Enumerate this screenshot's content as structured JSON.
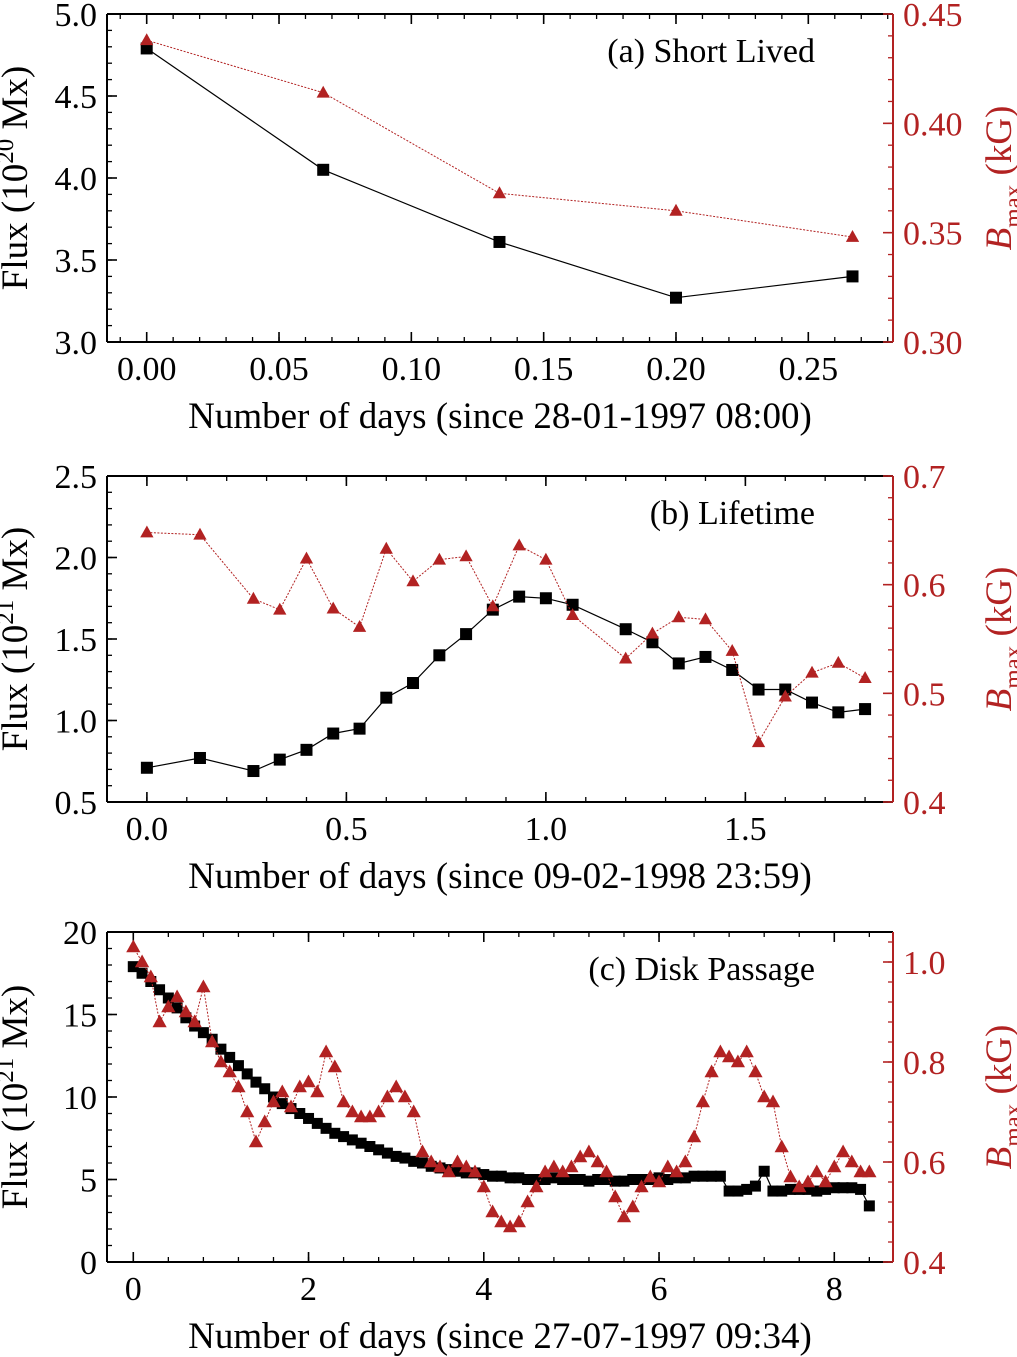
{
  "chart_data": [
    {
      "type": "line",
      "title": "(a) Short Lived",
      "xlabel": "Number of days (since 28-01-1997 08:00)",
      "ylabel": {
        "pre": "Flux (10",
        "sup": "20",
        "post": " Mx)"
      },
      "y2label": {
        "var": "B",
        "sub": "max",
        "post": " (kG)"
      },
      "xlim": [
        -0.015,
        0.282
      ],
      "xticks": [
        0.0,
        0.05,
        0.1,
        0.15,
        0.2,
        0.25
      ],
      "xtick_labels": [
        "0.00",
        "0.05",
        "0.10",
        "0.15",
        "0.20",
        "0.25"
      ],
      "ylim": [
        3.0,
        5.0
      ],
      "yticks": [
        3.0,
        3.5,
        4.0,
        4.5,
        5.0
      ],
      "ytick_labels": [
        "3.0",
        "3.5",
        "4.0",
        "4.5",
        "5.0"
      ],
      "y2lim": [
        0.3,
        0.45
      ],
      "y2ticks": [
        0.3,
        0.35,
        0.4,
        0.45
      ],
      "y2tick_labels": [
        "0.30",
        "0.35",
        "0.40",
        "0.45"
      ],
      "series": [
        {
          "name": "Flux",
          "axis": "left",
          "marker": "square",
          "color": "#000000",
          "x": [
            0.0,
            0.0667,
            0.1333,
            0.2,
            0.2667
          ],
          "y": [
            4.79,
            4.05,
            3.61,
            3.27,
            3.4
          ]
        },
        {
          "name": "Bmax",
          "axis": "right",
          "marker": "triangle",
          "color": "#b22222",
          "x": [
            0.0,
            0.0667,
            0.1333,
            0.2,
            0.2667
          ],
          "y": [
            0.438,
            0.414,
            0.368,
            0.36,
            0.348
          ]
        }
      ]
    },
    {
      "type": "line",
      "title": "(b) Lifetime",
      "xlabel": "Number of days (since 09-02-1998 23:59)",
      "ylabel": {
        "pre": "Flux (10",
        "sup": "21",
        "post": " Mx)"
      },
      "y2label": {
        "var": "B",
        "sub": "max",
        "post": " (kG)"
      },
      "xlim": [
        -0.1,
        1.87
      ],
      "xticks": [
        0.0,
        0.5,
        1.0,
        1.5
      ],
      "xtick_labels": [
        "0.0",
        "0.5",
        "1.0",
        "1.5"
      ],
      "ylim": [
        0.5,
        2.5
      ],
      "yticks": [
        0.5,
        1.0,
        1.5,
        2.0,
        2.5
      ],
      "ytick_labels": [
        "0.5",
        "1.0",
        "1.5",
        "2.0",
        "2.5"
      ],
      "y2lim": [
        0.4,
        0.7
      ],
      "y2ticks": [
        0.4,
        0.5,
        0.6,
        0.7
      ],
      "y2tick_labels": [
        "0.4",
        "0.5",
        "0.6",
        "0.7"
      ],
      "series": [
        {
          "name": "Flux",
          "axis": "left",
          "marker": "square",
          "color": "#000000",
          "x": [
            0.0,
            0.133,
            0.267,
            0.333,
            0.4,
            0.467,
            0.533,
            0.6,
            0.667,
            0.733,
            0.8,
            0.867,
            0.933,
            1.0,
            1.067,
            1.2,
            1.267,
            1.333,
            1.4,
            1.467,
            1.533,
            1.6,
            1.667,
            1.733,
            1.8
          ],
          "y": [
            0.71,
            0.77,
            0.69,
            0.76,
            0.82,
            0.92,
            0.95,
            1.14,
            1.23,
            1.4,
            1.53,
            1.68,
            1.76,
            1.75,
            1.71,
            1.56,
            1.48,
            1.35,
            1.39,
            1.31,
            1.19,
            1.19,
            1.11,
            1.05,
            1.07
          ]
        },
        {
          "name": "Bmax",
          "axis": "right",
          "marker": "triangle",
          "color": "#b22222",
          "x": [
            0.0,
            0.133,
            0.267,
            0.333,
            0.4,
            0.467,
            0.533,
            0.6,
            0.667,
            0.733,
            0.8,
            0.867,
            0.933,
            1.0,
            1.067,
            1.2,
            1.267,
            1.333,
            1.4,
            1.467,
            1.533,
            1.6,
            1.667,
            1.733,
            1.8
          ],
          "y": [
            0.648,
            0.646,
            0.587,
            0.577,
            0.624,
            0.578,
            0.561,
            0.633,
            0.603,
            0.623,
            0.626,
            0.58,
            0.636,
            0.623,
            0.572,
            0.532,
            0.555,
            0.57,
            0.568,
            0.539,
            0.455,
            0.497,
            0.519,
            0.528,
            0.514
          ]
        }
      ]
    },
    {
      "type": "line",
      "title": "(c) Disk Passage",
      "xlabel": "Number of days (since 27-07-1997 09:34)",
      "ylabel": {
        "pre": "Flux (10",
        "sup": "21",
        "post": " Mx)"
      },
      "y2label": {
        "var": "B",
        "sub": "max",
        "post": " (kG)"
      },
      "xlim": [
        -0.3,
        8.67
      ],
      "xticks": [
        0,
        2,
        4,
        6,
        8
      ],
      "xtick_labels": [
        "0",
        "2",
        "4",
        "6",
        "8"
      ],
      "ylim": [
        0,
        20
      ],
      "yticks": [
        0,
        5,
        10,
        15,
        20
      ],
      "ytick_labels": [
        "0",
        "5",
        "10",
        "15",
        "20"
      ],
      "y2lim": [
        0.4,
        1.06
      ],
      "y2ticks": [
        0.4,
        0.6,
        0.8,
        1.0
      ],
      "y2tick_labels": [
        "0.4",
        "0.6",
        "0.8",
        "1.0"
      ],
      "series": [
        {
          "name": "Flux",
          "axis": "left",
          "marker": "square",
          "color": "#000000",
          "x": [
            0.0,
            0.1,
            0.2,
            0.3,
            0.4,
            0.5,
            0.6,
            0.7,
            0.8,
            0.9,
            1.0,
            1.1,
            1.2,
            1.3,
            1.4,
            1.5,
            1.6,
            1.7,
            1.8,
            1.9,
            2.0,
            2.1,
            2.2,
            2.3,
            2.4,
            2.5,
            2.6,
            2.7,
            2.8,
            2.9,
            3.0,
            3.1,
            3.2,
            3.3,
            3.4,
            3.5,
            3.6,
            3.7,
            3.8,
            3.9,
            4.0,
            4.1,
            4.2,
            4.3,
            4.4,
            4.5,
            4.6,
            4.7,
            4.8,
            4.9,
            5.0,
            5.1,
            5.2,
            5.3,
            5.4,
            5.5,
            5.6,
            5.7,
            5.8,
            5.9,
            6.0,
            6.1,
            6.2,
            6.3,
            6.4,
            6.5,
            6.6,
            6.7,
            6.8,
            6.9,
            7.0,
            7.1,
            7.2,
            7.3,
            7.4,
            7.5,
            7.6,
            7.7,
            7.8,
            7.9,
            8.0,
            8.1,
            8.2,
            8.3,
            8.4
          ],
          "y": [
            17.9,
            17.5,
            17.0,
            16.5,
            16.0,
            15.4,
            14.8,
            14.3,
            13.9,
            13.5,
            12.9,
            12.4,
            11.9,
            11.4,
            10.9,
            10.5,
            10.0,
            9.6,
            9.3,
            9.0,
            8.7,
            8.4,
            8.1,
            7.8,
            7.6,
            7.4,
            7.2,
            7.0,
            6.8,
            6.6,
            6.4,
            6.3,
            6.1,
            6.0,
            5.8,
            5.7,
            5.6,
            5.5,
            5.4,
            5.4,
            5.3,
            5.2,
            5.2,
            5.1,
            5.1,
            5.0,
            5.0,
            5.0,
            5.1,
            5.0,
            5.0,
            5.0,
            4.9,
            5.0,
            5.0,
            4.9,
            4.9,
            5.0,
            5.0,
            5.0,
            5.1,
            5.0,
            5.1,
            5.1,
            5.2,
            5.2,
            5.2,
            5.2,
            4.3,
            4.3,
            4.4,
            4.6,
            5.5,
            4.3,
            4.3,
            4.4,
            4.4,
            4.4,
            4.3,
            4.4,
            4.5,
            4.5,
            4.5,
            4.4,
            3.4
          ]
        },
        {
          "name": "Bmax",
          "axis": "right",
          "marker": "triangle",
          "color": "#b22222",
          "x": [
            0.0,
            0.1,
            0.2,
            0.3,
            0.4,
            0.5,
            0.6,
            0.7,
            0.8,
            0.9,
            1.0,
            1.1,
            1.2,
            1.3,
            1.4,
            1.5,
            1.6,
            1.7,
            1.8,
            1.9,
            2.0,
            2.1,
            2.2,
            2.3,
            2.4,
            2.5,
            2.6,
            2.7,
            2.8,
            2.9,
            3.0,
            3.1,
            3.2,
            3.3,
            3.4,
            3.5,
            3.6,
            3.7,
            3.8,
            3.9,
            4.0,
            4.1,
            4.2,
            4.3,
            4.4,
            4.5,
            4.6,
            4.7,
            4.8,
            4.9,
            5.0,
            5.1,
            5.2,
            5.3,
            5.4,
            5.5,
            5.6,
            5.7,
            5.8,
            5.9,
            6.0,
            6.1,
            6.2,
            6.3,
            6.4,
            6.5,
            6.6,
            6.7,
            6.8,
            6.9,
            7.0,
            7.1,
            7.2,
            7.3,
            7.4,
            7.5,
            7.6,
            7.7,
            7.8,
            7.9,
            8.0,
            8.1,
            8.2,
            8.3,
            8.4
          ],
          "y": [
            1.03,
            1.0,
            0.97,
            0.88,
            0.91,
            0.93,
            0.9,
            0.88,
            0.95,
            0.84,
            0.8,
            0.78,
            0.75,
            0.7,
            0.64,
            0.68,
            0.72,
            0.74,
            0.71,
            0.75,
            0.76,
            0.74,
            0.82,
            0.79,
            0.72,
            0.7,
            0.69,
            0.69,
            0.7,
            0.73,
            0.75,
            0.73,
            0.7,
            0.62,
            0.6,
            0.59,
            0.58,
            0.6,
            0.59,
            0.58,
            0.55,
            0.5,
            0.48,
            0.47,
            0.48,
            0.52,
            0.55,
            0.58,
            0.59,
            0.58,
            0.59,
            0.61,
            0.62,
            0.6,
            0.58,
            0.53,
            0.49,
            0.51,
            0.55,
            0.57,
            0.56,
            0.59,
            0.58,
            0.6,
            0.65,
            0.72,
            0.78,
            0.82,
            0.81,
            0.8,
            0.82,
            0.78,
            0.73,
            0.72,
            0.63,
            0.57,
            0.55,
            0.56,
            0.58,
            0.56,
            0.59,
            0.62,
            0.6,
            0.58,
            0.58
          ]
        }
      ]
    }
  ]
}
